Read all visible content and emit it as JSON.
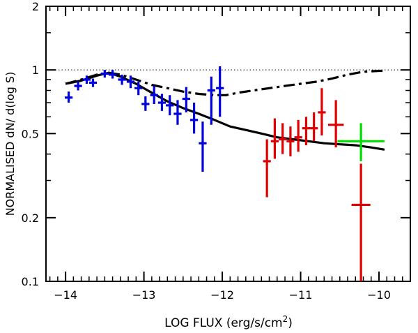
{
  "chart_data": {
    "type": "scatter",
    "title": "",
    "xlabel": "LOG FLUX (erg/s/cm",
    "xlabel_sup": "2",
    "xlabel_close": ")",
    "ylabel": "NORMALISED dN/ d(log S)",
    "yscale": "log",
    "xlim": [
      -14.25,
      -9.6
    ],
    "ylim": [
      0.1,
      2
    ],
    "xticks": [
      -14,
      -13,
      -12,
      -11,
      -10
    ],
    "xtick_labels": [
      "−14",
      "−13",
      "−12",
      "−11",
      "−10"
    ],
    "yticks": [
      0.1,
      0.2,
      0.5,
      1,
      2
    ],
    "ytick_labels": [
      "0.1",
      "0.2",
      "0.5",
      "1",
      "2"
    ],
    "reference_line": {
      "y": 1,
      "style": "dotted"
    },
    "colors": {
      "blue": "#0000e0",
      "red": "#e00000",
      "green": "#00dd00",
      "black": "#000000"
    },
    "series": [
      {
        "name": "blue",
        "color": "#0000e0",
        "points": [
          {
            "x": -13.96,
            "y": 0.74,
            "xerr": 0.05,
            "ylo": 0.7,
            "yhi": 0.79
          },
          {
            "x": -13.84,
            "y": 0.84,
            "xerr": 0.05,
            "ylo": 0.8,
            "yhi": 0.88
          },
          {
            "x": -13.73,
            "y": 0.9,
            "xerr": 0.05,
            "ylo": 0.86,
            "yhi": 0.94
          },
          {
            "x": -13.65,
            "y": 0.87,
            "xerr": 0.05,
            "ylo": 0.83,
            "yhi": 0.91
          },
          {
            "x": -13.5,
            "y": 0.96,
            "xerr": 0.05,
            "ylo": 0.92,
            "yhi": 1.0
          },
          {
            "x": -13.4,
            "y": 0.95,
            "xerr": 0.05,
            "ylo": 0.91,
            "yhi": 1.0
          },
          {
            "x": -13.28,
            "y": 0.9,
            "xerr": 0.05,
            "ylo": 0.85,
            "yhi": 0.95
          },
          {
            "x": -13.17,
            "y": 0.88,
            "xerr": 0.05,
            "ylo": 0.82,
            "yhi": 0.94
          },
          {
            "x": -13.07,
            "y": 0.82,
            "xerr": 0.05,
            "ylo": 0.76,
            "yhi": 0.88
          },
          {
            "x": -12.98,
            "y": 0.69,
            "xerr": 0.05,
            "ylo": 0.64,
            "yhi": 0.75
          },
          {
            "x": -12.87,
            "y": 0.76,
            "xerr": 0.05,
            "ylo": 0.69,
            "yhi": 0.84
          },
          {
            "x": -12.77,
            "y": 0.7,
            "xerr": 0.05,
            "ylo": 0.64,
            "yhi": 0.77
          },
          {
            "x": -12.67,
            "y": 0.68,
            "xerr": 0.05,
            "ylo": 0.61,
            "yhi": 0.76
          },
          {
            "x": -12.57,
            "y": 0.62,
            "xerr": 0.05,
            "ylo": 0.55,
            "yhi": 0.72
          },
          {
            "x": -12.46,
            "y": 0.73,
            "xerr": 0.05,
            "ylo": 0.63,
            "yhi": 0.83
          },
          {
            "x": -12.36,
            "y": 0.58,
            "xerr": 0.05,
            "ylo": 0.5,
            "yhi": 0.7
          },
          {
            "x": -12.25,
            "y": 0.45,
            "xerr": 0.05,
            "ylo": 0.33,
            "yhi": 0.57
          },
          {
            "x": -12.14,
            "y": 0.8,
            "xerr": 0.05,
            "ylo": 0.55,
            "yhi": 0.93
          },
          {
            "x": -12.03,
            "y": 0.82,
            "xerr": 0.05,
            "ylo": 0.6,
            "yhi": 1.04
          }
        ]
      },
      {
        "name": "red",
        "color": "#e00000",
        "points": [
          {
            "x": -11.43,
            "y": 0.37,
            "xerr": 0.05,
            "ylo": 0.25,
            "yhi": 0.47
          },
          {
            "x": -11.33,
            "y": 0.46,
            "xerr": 0.05,
            "ylo": 0.38,
            "yhi": 0.59
          },
          {
            "x": -11.23,
            "y": 0.47,
            "xerr": 0.05,
            "ylo": 0.4,
            "yhi": 0.56
          },
          {
            "x": -11.13,
            "y": 0.46,
            "xerr": 0.05,
            "ylo": 0.39,
            "yhi": 0.54
          },
          {
            "x": -11.03,
            "y": 0.48,
            "xerr": 0.05,
            "ylo": 0.41,
            "yhi": 0.58
          },
          {
            "x": -10.93,
            "y": 0.53,
            "xerr": 0.05,
            "ylo": 0.44,
            "yhi": 0.6
          },
          {
            "x": -10.83,
            "y": 0.53,
            "xerr": 0.05,
            "ylo": 0.46,
            "yhi": 0.63
          },
          {
            "x": -10.73,
            "y": 0.63,
            "xerr": 0.05,
            "ylo": 0.49,
            "yhi": 0.82
          },
          {
            "x": -10.55,
            "y": 0.55,
            "xerr": 0.1,
            "ylo": 0.43,
            "yhi": 0.72
          },
          {
            "x": -10.23,
            "y": 0.23,
            "xerr": 0.12,
            "ylo": 0.09,
            "yhi": 0.36
          }
        ]
      },
      {
        "name": "green",
        "color": "#00dd00",
        "points": [
          {
            "x": -10.23,
            "y": 0.46,
            "xerr": 0.3,
            "ylo": 0.37,
            "yhi": 0.56
          }
        ]
      }
    ],
    "curves": [
      {
        "name": "solid",
        "style": "solid",
        "color": "#000000",
        "x": [
          -14.0,
          -13.8,
          -13.6,
          -13.45,
          -13.3,
          -13.1,
          -12.9,
          -12.7,
          -12.5,
          -12.3,
          -12.1,
          -11.9,
          -11.7,
          -11.5,
          -11.3,
          -11.1,
          -10.9,
          -10.7,
          -10.5,
          -10.3,
          -10.1,
          -9.93
        ],
        "y": [
          0.86,
          0.89,
          0.94,
          0.97,
          0.93,
          0.86,
          0.78,
          0.71,
          0.66,
          0.62,
          0.58,
          0.54,
          0.52,
          0.5,
          0.48,
          0.47,
          0.46,
          0.45,
          0.445,
          0.44,
          0.43,
          0.42
        ]
      },
      {
        "name": "dash-dot",
        "style": "dashdot",
        "color": "#000000",
        "x": [
          -14.0,
          -13.8,
          -13.6,
          -13.45,
          -13.3,
          -13.1,
          -12.9,
          -12.7,
          -12.5,
          -12.3,
          -12.1,
          -11.95,
          -11.8,
          -11.6,
          -11.4,
          -11.2,
          -11.0,
          -10.8,
          -10.6,
          -10.4,
          -10.2,
          -10.0,
          -9.93
        ],
        "y": [
          0.86,
          0.9,
          0.95,
          0.97,
          0.95,
          0.9,
          0.85,
          0.82,
          0.79,
          0.77,
          0.76,
          0.76,
          0.78,
          0.8,
          0.82,
          0.84,
          0.86,
          0.88,
          0.91,
          0.95,
          0.98,
          0.99,
          0.99
        ]
      }
    ]
  }
}
